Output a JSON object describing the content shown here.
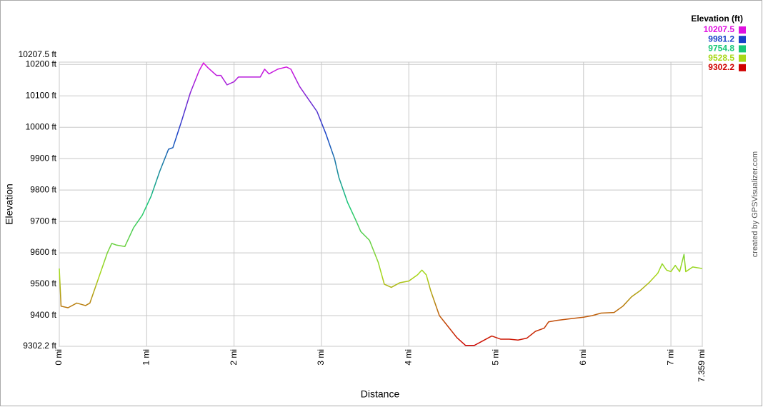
{
  "chart_data": {
    "type": "line",
    "xlabel": "Distance",
    "ylabel": "Elevation",
    "credit": "created by GPSVisualizer.com",
    "legend_title": "Elevation (ft)",
    "color_scale": [
      {
        "value": 10207.5,
        "color": "#e010e0"
      },
      {
        "value": 9981.2,
        "color": "#1840c8"
      },
      {
        "value": 9754.8,
        "color": "#18c878"
      },
      {
        "value": 9528.5,
        "color": "#a8d818"
      },
      {
        "value": 9302.2,
        "color": "#d00000"
      }
    ],
    "grid": true,
    "xlim": [
      0,
      7.359
    ],
    "ylim": [
      9302.2,
      10207.5
    ],
    "xticks": [
      {
        "value": 0,
        "label": "0 mi"
      },
      {
        "value": 1,
        "label": "1 mi"
      },
      {
        "value": 2,
        "label": "2 mi"
      },
      {
        "value": 3,
        "label": "3 mi"
      },
      {
        "value": 4,
        "label": "4 mi"
      },
      {
        "value": 5,
        "label": "5 mi"
      },
      {
        "value": 6,
        "label": "6 mi"
      },
      {
        "value": 7,
        "label": "7 mi"
      },
      {
        "value": 7.359,
        "label": "7.359 mi"
      }
    ],
    "yticks": [
      {
        "value": 9302.2,
        "label": "9302.2 ft"
      },
      {
        "value": 9400,
        "label": "9400 ft"
      },
      {
        "value": 9500,
        "label": "9500 ft"
      },
      {
        "value": 9600,
        "label": "9600 ft"
      },
      {
        "value": 9700,
        "label": "9700 ft"
      },
      {
        "value": 9800,
        "label": "9800 ft"
      },
      {
        "value": 9900,
        "label": "9900 ft"
      },
      {
        "value": 10000,
        "label": "10000 ft"
      },
      {
        "value": 10100,
        "label": "10100 ft"
      },
      {
        "value": 10200,
        "label": "10200 ft"
      },
      {
        "value": 10207.5,
        "label": "10207.5 ft"
      }
    ],
    "x": [
      0,
      0.02,
      0.1,
      0.2,
      0.3,
      0.35,
      0.45,
      0.55,
      0.6,
      0.65,
      0.75,
      0.85,
      0.95,
      1.05,
      1.15,
      1.25,
      1.3,
      1.4,
      1.5,
      1.6,
      1.65,
      1.7,
      1.8,
      1.85,
      1.92,
      2.0,
      2.05,
      2.15,
      2.3,
      2.35,
      2.4,
      2.5,
      2.6,
      2.65,
      2.75,
      2.85,
      2.95,
      3.05,
      3.15,
      3.2,
      3.3,
      3.4,
      3.45,
      3.55,
      3.65,
      3.72,
      3.8,
      3.9,
      4.0,
      4.1,
      4.15,
      4.2,
      4.25,
      4.35,
      4.45,
      4.55,
      4.65,
      4.75,
      4.85,
      4.95,
      5.05,
      5.15,
      5.25,
      5.35,
      5.45,
      5.55,
      5.6,
      5.7,
      5.85,
      6.0,
      6.1,
      6.2,
      6.35,
      6.45,
      6.55,
      6.65,
      6.75,
      6.85,
      6.9,
      6.95,
      7.0,
      7.05,
      7.1,
      7.15,
      7.17,
      7.25,
      7.359
    ],
    "values": [
      9550,
      9430,
      9425,
      9440,
      9432,
      9440,
      9520,
      9600,
      9630,
      9625,
      9620,
      9680,
      9720,
      9780,
      9860,
      9930,
      9935,
      10020,
      10110,
      10180,
      10205,
      10190,
      10165,
      10165,
      10135,
      10145,
      10160,
      10160,
      10160,
      10185,
      10170,
      10185,
      10192,
      10185,
      10130,
      10090,
      10050,
      9980,
      9900,
      9840,
      9760,
      9700,
      9668,
      9640,
      9570,
      9500,
      9490,
      9505,
      9510,
      9530,
      9545,
      9530,
      9480,
      9400,
      9365,
      9330,
      9305,
      9305,
      9320,
      9335,
      9325,
      9325,
      9322,
      9328,
      9350,
      9360,
      9380,
      9385,
      9390,
      9395,
      9400,
      9408,
      9410,
      9430,
      9460,
      9480,
      9505,
      9535,
      9565,
      9545,
      9540,
      9560,
      9540,
      9595,
      9540,
      9555,
      9550
    ]
  }
}
